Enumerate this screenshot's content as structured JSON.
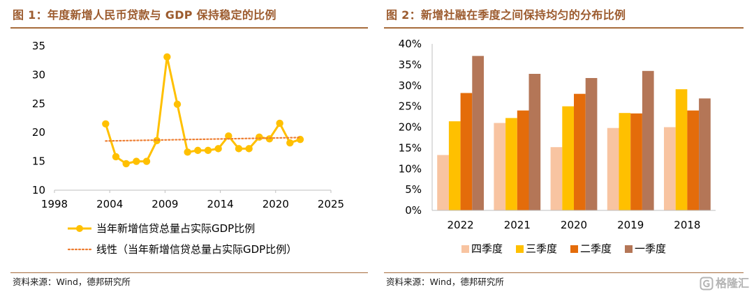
{
  "theme": {
    "title_color": "#9C5B2E",
    "rule_color": "#A66B3B",
    "axis_color": "#BFBFBF",
    "source_color": "#1A1A1A",
    "watermark_color": "#A8A8A8"
  },
  "panels": [
    {
      "source": "资料来源：Wind，德邦研究所"
    },
    {
      "source": "资料来源：Wind，德邦研究所"
    }
  ],
  "watermark": {
    "text": "格隆汇",
    "icon": "glh-logo-icon"
  },
  "chart_data": [
    {
      "type": "line",
      "title": "图 1：年度新增人民币贷款与 GDP 保持稳定的比例",
      "x": [
        2003,
        2004,
        2005,
        2006,
        2007,
        2008,
        2009,
        2010,
        2011,
        2012,
        2013,
        2014,
        2015,
        2016,
        2017,
        2018,
        2019,
        2020,
        2021,
        2022
      ],
      "series": [
        {
          "name": "当年新增信贷总量占实际GDP比例",
          "values": [
            21.5,
            15.8,
            14.6,
            15.0,
            15.0,
            18.6,
            33.1,
            24.9,
            16.6,
            16.9,
            16.9,
            17.2,
            19.4,
            17.2,
            17.2,
            19.2,
            18.9,
            21.6,
            18.2,
            18.8
          ],
          "color": "#FFC000",
          "marker": "circle"
        }
      ],
      "trendline": {
        "name": "线性（当年新增信贷总量占实际GDP比例）",
        "fit": "linear",
        "color": "#ED7D31",
        "style": "dotted"
      },
      "xlim": [
        1998,
        2025
      ],
      "ylim": [
        10,
        35
      ],
      "xticks": [
        "1998",
        "2004",
        "2009",
        "2014",
        "2020",
        "2025"
      ],
      "yticks": [
        "10",
        "15",
        "20",
        "25",
        "30",
        "35"
      ],
      "grid": false,
      "legend": "bottom-left"
    },
    {
      "type": "bar",
      "title": "图 2：新增社融在季度之间保持均匀的分布比例",
      "categories": [
        "2022",
        "2021",
        "2020",
        "2019",
        "2018"
      ],
      "series": [
        {
          "name": "四季度",
          "values": [
            13.3,
            21.0,
            15.2,
            19.8,
            20.0
          ],
          "color": "#F8C4A1"
        },
        {
          "name": "三季度",
          "values": [
            21.4,
            22.2,
            25.0,
            23.4,
            29.1
          ],
          "color": "#FFC000"
        },
        {
          "name": "二季度",
          "values": [
            28.2,
            24.0,
            28.0,
            23.3,
            24.0
          ],
          "color": "#E46C0A"
        },
        {
          "name": "一季度",
          "values": [
            37.1,
            32.8,
            31.8,
            33.5,
            26.9
          ],
          "color": "#B47657"
        }
      ],
      "ylim": [
        0,
        40
      ],
      "unit": "%",
      "yticks": [
        "0%",
        "5%",
        "10%",
        "15%",
        "20%",
        "25%",
        "30%",
        "35%",
        "40%"
      ],
      "grid": false,
      "legend": "bottom"
    }
  ]
}
